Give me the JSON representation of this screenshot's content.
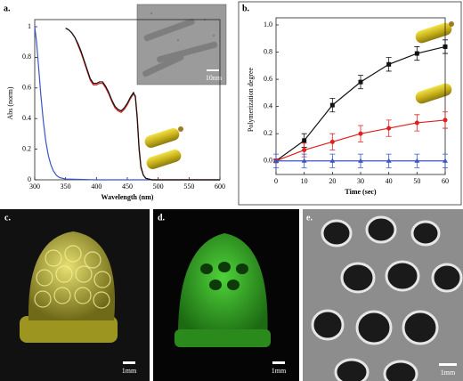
{
  "chart_data": [
    {
      "type": "line",
      "panel_label": "a.",
      "xlabel": "Wavelength (nm)",
      "ylabel": "Abs (norm)",
      "inset_scale_bar": "10nm",
      "xlim": [
        300,
        600
      ],
      "xticks": [
        300,
        350,
        400,
        450,
        500,
        550,
        600
      ],
      "ylim": [
        0,
        1
      ],
      "yticks": [
        0,
        0.2,
        0.4,
        0.6,
        0.8,
        1
      ],
      "markers": false,
      "series": [
        {
          "color": "#3a55c8",
          "x": [
            300,
            303,
            306,
            310,
            314,
            318,
            322,
            326,
            330,
            335,
            340,
            350,
            400,
            500,
            600
          ],
          "values": [
            1,
            0.9,
            0.75,
            0.55,
            0.38,
            0.25,
            0.16,
            0.1,
            0.06,
            0.03,
            0.015,
            0.005,
            0,
            0,
            0
          ]
        },
        {
          "color": "#e02020",
          "x": [
            350,
            355,
            360,
            365,
            370,
            375,
            380,
            385,
            390,
            395,
            400,
            405,
            410,
            415,
            420,
            425,
            430,
            435,
            440,
            445,
            450,
            455,
            460,
            463,
            466,
            469,
            472,
            476,
            480,
            490,
            500,
            550,
            600
          ],
          "values": [
            0.99,
            0.98,
            0.96,
            0.93,
            0.88,
            0.83,
            0.77,
            0.71,
            0.65,
            0.62,
            0.62,
            0.63,
            0.63,
            0.6,
            0.56,
            0.51,
            0.47,
            0.45,
            0.44,
            0.46,
            0.49,
            0.53,
            0.56,
            0.55,
            0.42,
            0.22,
            0.09,
            0.03,
            0.01,
            0,
            0,
            0,
            0
          ]
        },
        {
          "color": "#111111",
          "x": [
            350,
            355,
            360,
            365,
            370,
            375,
            380,
            385,
            390,
            395,
            400,
            405,
            410,
            415,
            420,
            425,
            430,
            435,
            440,
            445,
            450,
            455,
            460,
            463,
            466,
            469,
            472,
            476,
            480,
            490,
            500,
            550,
            600
          ],
          "values": [
            0.99,
            0.98,
            0.96,
            0.93,
            0.89,
            0.84,
            0.78,
            0.72,
            0.66,
            0.63,
            0.63,
            0.64,
            0.64,
            0.61,
            0.57,
            0.52,
            0.48,
            0.46,
            0.45,
            0.47,
            0.5,
            0.54,
            0.57,
            0.54,
            0.4,
            0.2,
            0.08,
            0.03,
            0.01,
            0,
            0,
            0,
            0
          ]
        }
      ]
    },
    {
      "type": "line",
      "panel_label": "b.",
      "xlabel": "Time (sec)",
      "ylabel": "Polymerization degree",
      "x": [
        0,
        10,
        20,
        30,
        40,
        50,
        60
      ],
      "xlim": [
        0,
        60
      ],
      "xticks": [
        0,
        10,
        20,
        30,
        40,
        50,
        60
      ],
      "ylim": [
        -0.1,
        1
      ],
      "yticks": [
        {
          "value": 0,
          "label": "0.0"
        },
        0.2,
        0.4,
        0.6,
        0.8,
        {
          "value": 1,
          "label": "1.0"
        }
      ],
      "markers": true,
      "series": [
        {
          "color": "#111111",
          "marker": "square",
          "values": [
            0,
            0.15,
            0.41,
            0.58,
            0.71,
            0.79,
            0.84
          ],
          "errors": [
            0.01,
            0.05,
            0.05,
            0.05,
            0.05,
            0.05,
            0.05
          ]
        },
        {
          "color": "#e02020",
          "marker": "circle",
          "values": [
            0,
            0.08,
            0.14,
            0.2,
            0.24,
            0.28,
            0.3
          ],
          "errors": [
            0.01,
            0.05,
            0.06,
            0.06,
            0.06,
            0.06,
            0.06
          ]
        },
        {
          "color": "#3a55c8",
          "marker": "triangle",
          "values": [
            0,
            0,
            0,
            0,
            0,
            0,
            0
          ],
          "errors": [
            0.05,
            0.05,
            0.05,
            0.05,
            0.05,
            0.05,
            0.05
          ]
        }
      ]
    }
  ],
  "image_panels": [
    {
      "label": "c.",
      "scale_bar": "1mm"
    },
    {
      "label": "d.",
      "scale_bar": "1mm"
    },
    {
      "label": "e.",
      "scale_bar": "1mm"
    }
  ]
}
